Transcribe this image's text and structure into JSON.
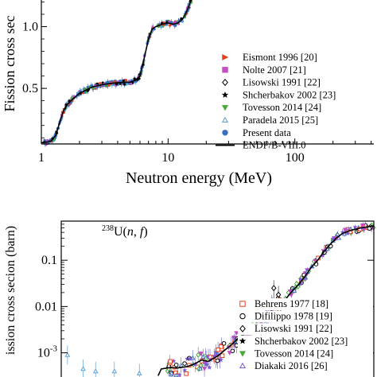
{
  "chart_data": [
    {
      "type": "scatter",
      "title": "",
      "xlabel": "Neutron energy (MeV)",
      "ylabel": "Fission cross sec",
      "xscale": "log",
      "xlim": [
        1,
        420
      ],
      "ylim": [
        0.05,
        1.28
      ],
      "x_ticks": [
        1,
        10,
        100
      ],
      "x_tick_labels": [
        "1",
        "10",
        "100"
      ],
      "y_ticks": [
        0.5,
        1.0
      ],
      "y_tick_labels": [
        "0.5",
        "1.0"
      ],
      "grid": false,
      "legend_position": "right",
      "curve_points": [
        [
          1.0,
          0.06
        ],
        [
          1.1,
          0.065
        ],
        [
          1.2,
          0.075
        ],
        [
          1.3,
          0.12
        ],
        [
          1.4,
          0.23
        ],
        [
          1.5,
          0.32
        ],
        [
          1.6,
          0.37
        ],
        [
          1.8,
          0.42
        ],
        [
          2.0,
          0.46
        ],
        [
          2.5,
          0.51
        ],
        [
          3.0,
          0.53
        ],
        [
          3.5,
          0.54
        ],
        [
          4.0,
          0.545
        ],
        [
          4.5,
          0.55
        ],
        [
          5.0,
          0.55
        ],
        [
          5.5,
          0.565
        ],
        [
          6.0,
          0.6
        ],
        [
          6.5,
          0.75
        ],
        [
          7.0,
          0.9
        ],
        [
          7.5,
          0.98
        ],
        [
          8.0,
          1.0
        ],
        [
          9.0,
          1.02
        ],
        [
          10.0,
          1.03
        ],
        [
          11.0,
          1.02
        ],
        [
          12.0,
          1.03
        ],
        [
          13.0,
          1.06
        ],
        [
          14.0,
          1.12
        ],
        [
          15.0,
          1.2
        ],
        [
          16.5,
          1.28
        ]
      ],
      "series": [
        {
          "name": "Eismont 1996 [20]",
          "marker": "triangle-right",
          "color": "#e8401c"
        },
        {
          "name": "Nolte 2007 [21]",
          "marker": "square",
          "color": "#c44ec4"
        },
        {
          "name": "Lisowski 1991 [22]",
          "marker": "diamond-open",
          "color": "#000000"
        },
        {
          "name": "Shcherbakov 2002 [23]",
          "marker": "star",
          "color": "#000000"
        },
        {
          "name": "Tovesson 2014 [24]",
          "marker": "triangle-down",
          "color": "#4aa83a"
        },
        {
          "name": "Paradela 2015 [25]",
          "marker": "triangle-up-open",
          "color": "#5aa0d8"
        },
        {
          "name": "Present data",
          "marker": "circle",
          "color": "#3a6fc0"
        },
        {
          "name": "ENDF/B-VIII.0",
          "marker": "line",
          "color": "#000000"
        }
      ]
    },
    {
      "type": "scatter",
      "title": "",
      "annotation": "238U(n, f)",
      "xlabel": "",
      "ylabel": "ission cross secion  (barn)",
      "yscale": "log",
      "xlim": [
        0,
        1
      ],
      "ylim": [
        0.0003,
        0.7
      ],
      "y_ticks": [
        0.001,
        0.01,
        0.1
      ],
      "y_tick_labels": [
        "10-3",
        "0.01",
        "0.1"
      ],
      "grid": false,
      "legend_position": "bottom-right",
      "curve_points": [
        [
          0.31,
          0.00032
        ],
        [
          0.32,
          0.00045
        ],
        [
          0.35,
          0.00048
        ],
        [
          0.37,
          0.00047
        ],
        [
          0.4,
          0.0005
        ],
        [
          0.42,
          0.00055
        ],
        [
          0.45,
          0.0007
        ],
        [
          0.47,
          0.00065
        ],
        [
          0.5,
          0.00085
        ],
        [
          0.52,
          0.0011
        ],
        [
          0.55,
          0.0016
        ],
        [
          0.57,
          0.0022
        ],
        [
          0.6,
          0.0028
        ],
        [
          0.62,
          0.0042
        ],
        [
          0.65,
          0.006
        ],
        [
          0.67,
          0.008
        ],
        [
          0.7,
          0.011
        ],
        [
          0.72,
          0.015
        ],
        [
          0.74,
          0.022
        ],
        [
          0.76,
          0.03
        ],
        [
          0.78,
          0.045
        ],
        [
          0.8,
          0.07
        ],
        [
          0.82,
          0.1
        ],
        [
          0.84,
          0.15
        ],
        [
          0.86,
          0.22
        ],
        [
          0.88,
          0.3
        ],
        [
          0.9,
          0.38
        ],
        [
          0.93,
          0.45
        ],
        [
          0.96,
          0.5
        ],
        [
          1.0,
          0.55
        ]
      ],
      "series": [
        {
          "name": "Behrens 1977 [18]",
          "marker": "square-open",
          "color": "#e8401c"
        },
        {
          "name": "Difilippo 1978 [19]",
          "marker": "circle-open",
          "color": "#000000"
        },
        {
          "name": "Lisowski 1991 [22]",
          "marker": "diamond-open",
          "color": "#000000"
        },
        {
          "name": "Shcherbakov 2002 [23]",
          "marker": "star",
          "color": "#000000"
        },
        {
          "name": "Tovesson 2014 [24]",
          "marker": "triangle-down",
          "color": "#4aa83a"
        },
        {
          "name": "Diakaki 2016 [26]",
          "marker": "triangle-up-open",
          "color": "#7a5ad8"
        }
      ]
    }
  ]
}
